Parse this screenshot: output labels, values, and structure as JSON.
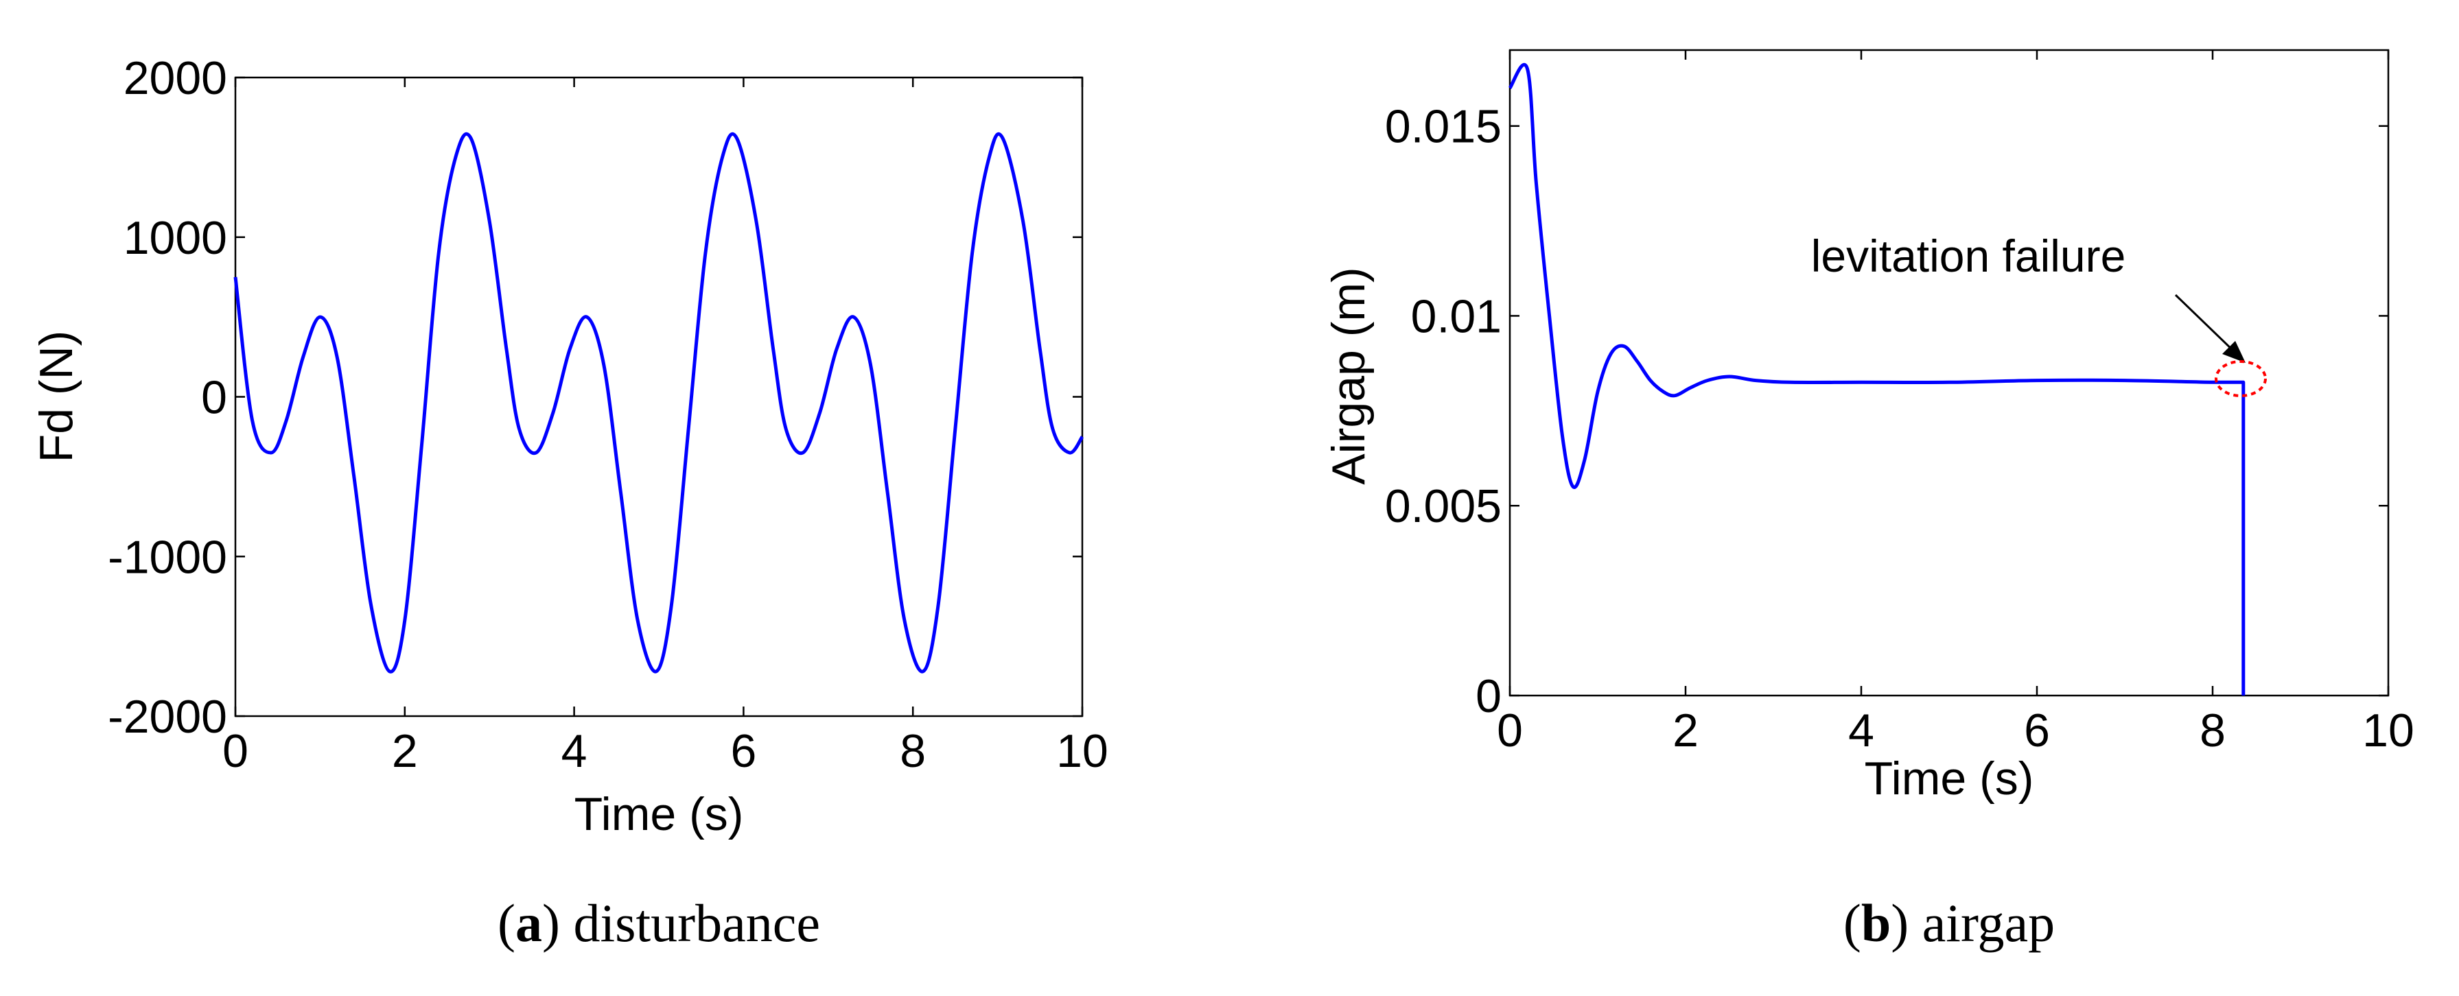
{
  "chart_data": [
    {
      "type": "line",
      "title": "",
      "xlabel": "Time (s)",
      "ylabel": "Fd (N)",
      "xlim": [
        0,
        10
      ],
      "ylim": [
        -2000,
        2000
      ],
      "xticks": [
        "0",
        "2",
        "4",
        "6",
        "8",
        "10"
      ],
      "yticks": [
        "-2000",
        "-1000",
        "0",
        "1000",
        "2000"
      ],
      "grid": false,
      "caption_letter": "a",
      "caption_text": " disturbance",
      "series_color": "#0000ff",
      "series": [
        {
          "x": [
            0,
            0.2,
            0.42,
            0.6,
            0.8,
            1.0,
            1.2,
            1.4,
            1.6,
            1.82,
            2.0,
            2.2,
            2.4,
            2.6,
            2.78,
            3.0,
            3.2,
            3.35,
            3.55,
            3.75,
            3.95,
            4.15,
            4.35,
            4.55,
            4.75,
            4.97,
            5.15,
            5.35,
            5.55,
            5.75,
            5.92,
            6.15,
            6.35,
            6.5,
            6.7,
            6.9,
            7.1,
            7.3,
            7.5,
            7.7,
            7.9,
            8.12,
            8.3,
            8.5,
            8.7,
            8.9,
            9.06,
            9.3,
            9.5,
            9.65,
            9.85,
            10.0
          ],
          "y": [
            750,
            -150,
            -350,
            -150,
            250,
            500,
            250,
            -500,
            -1300,
            -1720,
            -1400,
            -300,
            900,
            1500,
            1620,
            1100,
            300,
            -200,
            -350,
            -100,
            300,
            500,
            200,
            -600,
            -1400,
            -1720,
            -1300,
            -200,
            900,
            1500,
            1620,
            1100,
            300,
            -200,
            -350,
            -100,
            300,
            500,
            200,
            -600,
            -1400,
            -1720,
            -1300,
            -200,
            900,
            1500,
            1620,
            1100,
            300,
            -200,
            -350,
            -250
          ]
        }
      ]
    },
    {
      "type": "line",
      "title": "",
      "xlabel": "Time (s)",
      "ylabel": "Airgap (m)",
      "xlim": [
        0,
        10
      ],
      "ylim": [
        0,
        0.017
      ],
      "xticks": [
        "0",
        "2",
        "4",
        "6",
        "8",
        "10"
      ],
      "yticks": [
        "0",
        "0.005",
        "0.01",
        "0.015"
      ],
      "grid": false,
      "annotation": "levitation failure",
      "annotation_color": "#ff0000",
      "caption_letter": "b",
      "caption_text": " airgap",
      "series_color": "#0000ff",
      "series": [
        {
          "x": [
            0,
            0.2,
            0.3,
            0.45,
            0.6,
            0.72,
            0.85,
            1.0,
            1.15,
            1.3,
            1.45,
            1.6,
            1.75,
            1.88,
            2.05,
            2.25,
            2.5,
            2.8,
            3.2,
            4.0,
            5.0,
            6.0,
            7.0,
            8.0,
            8.35,
            8.35
          ],
          "y": [
            0.016,
            0.0165,
            0.0135,
            0.01,
            0.0068,
            0.0055,
            0.0062,
            0.008,
            0.009,
            0.0092,
            0.0088,
            0.0083,
            0.008,
            0.0079,
            0.0081,
            0.0083,
            0.0084,
            0.0083,
            0.00825,
            0.00825,
            0.00825,
            0.0083,
            0.0083,
            0.00825,
            0.00825,
            0
          ]
        }
      ]
    }
  ]
}
